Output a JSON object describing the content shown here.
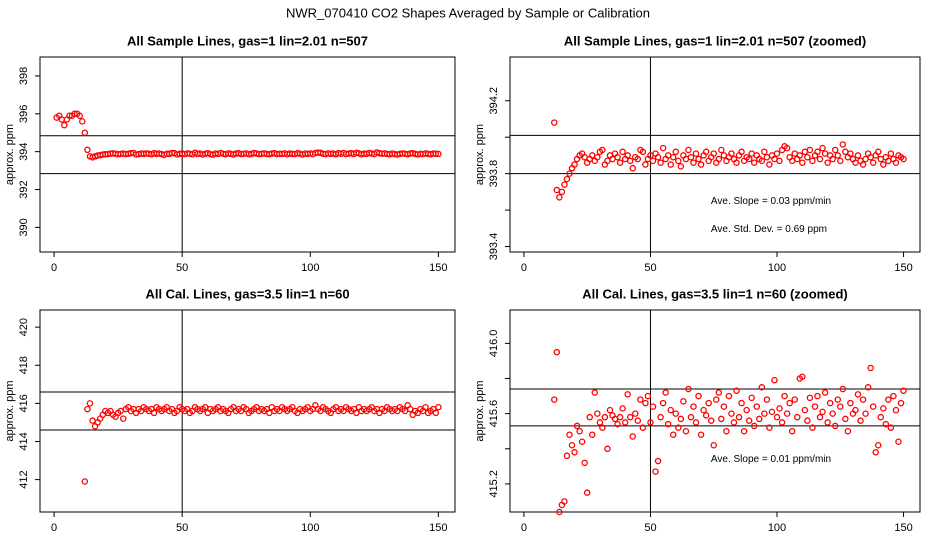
{
  "title": "NWR_070410  CO2 Shapes Averaged by Sample or Calibration",
  "chart_data": [
    {
      "type": "scatter",
      "title": "All Sample Lines, gas=1 lin=2.01 n=507",
      "y_label": "approx. ppm",
      "color": "#ff0000",
      "xlim": [
        -5.5,
        156.5
      ],
      "xticks": [
        0,
        50,
        100,
        150
      ],
      "ylim": [
        388.7,
        399.0
      ],
      "yticks": [
        390,
        392,
        394,
        396,
        398
      ],
      "hlines": [
        394.84,
        392.84
      ],
      "vline": 50,
      "x": [
        1,
        2,
        3,
        4,
        5,
        6,
        7,
        8,
        9,
        10,
        11,
        12,
        13,
        14,
        15,
        16,
        17,
        18,
        19,
        20,
        21,
        22,
        23,
        24,
        25,
        26,
        27,
        28,
        29,
        30,
        31,
        32,
        33,
        34,
        35,
        36,
        37,
        38,
        39,
        40,
        41,
        42,
        43,
        44,
        45,
        46,
        47,
        48,
        49,
        50,
        51,
        52,
        53,
        54,
        55,
        56,
        57,
        58,
        59,
        60,
        61,
        62,
        63,
        64,
        65,
        66,
        67,
        68,
        69,
        70,
        71,
        72,
        73,
        74,
        75,
        76,
        77,
        78,
        79,
        80,
        81,
        82,
        83,
        84,
        85,
        86,
        87,
        88,
        89,
        90,
        91,
        92,
        93,
        94,
        95,
        96,
        97,
        98,
        99,
        100,
        101,
        102,
        103,
        104,
        105,
        106,
        107,
        108,
        109,
        110,
        111,
        112,
        113,
        114,
        115,
        116,
        117,
        118,
        119,
        120,
        121,
        122,
        123,
        124,
        125,
        126,
        127,
        128,
        129,
        130,
        131,
        132,
        133,
        134,
        135,
        136,
        137,
        138,
        139,
        140,
        141,
        142,
        143,
        144,
        145,
        146,
        147,
        148,
        149,
        150
      ],
      "values": [
        395.8,
        395.9,
        395.7,
        395.4,
        395.7,
        395.9,
        395.9,
        396.0,
        396.0,
        395.9,
        395.6,
        395.0,
        394.1,
        393.75,
        393.7,
        393.75,
        393.8,
        393.82,
        393.85,
        393.86,
        393.87,
        393.9,
        393.91,
        393.89,
        393.86,
        393.88,
        393.9,
        393.87,
        393.89,
        393.92,
        393.93,
        393.85,
        393.87,
        393.9,
        393.88,
        393.91,
        393.89,
        393.86,
        393.92,
        393.88,
        393.9,
        393.87,
        393.83,
        393.89,
        393.88,
        393.93,
        393.92,
        393.85,
        393.88,
        393.9,
        393.87,
        393.91,
        393.89,
        393.86,
        393.94,
        393.88,
        393.9,
        393.85,
        393.89,
        393.92,
        393.87,
        393.84,
        393.9,
        393.88,
        393.93,
        393.89,
        393.86,
        393.91,
        393.88,
        393.85,
        393.9,
        393.92,
        393.87,
        393.89,
        393.91,
        393.86,
        393.88,
        393.93,
        393.9,
        393.87,
        393.89,
        393.91,
        393.88,
        393.86,
        393.9,
        393.92,
        393.87,
        393.89,
        393.88,
        393.91,
        393.86,
        393.9,
        393.88,
        393.87,
        393.92,
        393.89,
        393.85,
        393.9,
        393.88,
        393.91,
        393.87,
        393.93,
        393.95,
        393.94,
        393.89,
        393.87,
        393.91,
        393.88,
        393.9,
        393.86,
        393.92,
        393.89,
        393.93,
        393.87,
        393.9,
        393.92,
        393.88,
        393.94,
        393.91,
        393.86,
        393.9,
        393.88,
        393.93,
        393.9,
        393.87,
        393.96,
        393.92,
        393.89,
        393.91,
        393.88,
        393.86,
        393.9,
        393.87,
        393.85,
        393.88,
        393.91,
        393.89,
        393.86,
        393.9,
        393.92,
        393.88,
        393.85,
        393.89,
        393.87,
        393.91,
        393.88,
        393.86,
        393.9,
        393.89,
        393.88
      ]
    },
    {
      "type": "scatter",
      "title": "All Sample Lines, gas=1 lin=2.01 n=507 (zoomed)",
      "y_label": "approx. ppm",
      "color": "#ff0000",
      "xlim": [
        -5.5,
        156.5
      ],
      "xticks": [
        0,
        50,
        100,
        150
      ],
      "ylim": [
        393.37,
        394.44
      ],
      "yticks": [
        393.4,
        393.8,
        394.2
      ],
      "yminor": [
        393.6,
        394.0
      ],
      "hlines": [
        394.01,
        393.8
      ],
      "vline": 50,
      "annotations": [
        "Ave. Slope =  0.03  ppm/min",
        "Ave. Std. Dev. =  0.69  ppm"
      ],
      "x": [
        12,
        13,
        14,
        15,
        16,
        17,
        18,
        19,
        20,
        21,
        22,
        23,
        24,
        25,
        26,
        27,
        28,
        29,
        30,
        31,
        32,
        33,
        34,
        35,
        36,
        37,
        38,
        39,
        40,
        41,
        42,
        43,
        44,
        45,
        46,
        47,
        48,
        49,
        50,
        51,
        52,
        53,
        54,
        55,
        56,
        57,
        58,
        59,
        60,
        61,
        62,
        63,
        64,
        65,
        66,
        67,
        68,
        69,
        70,
        71,
        72,
        73,
        74,
        75,
        76,
        77,
        78,
        79,
        80,
        81,
        82,
        83,
        84,
        85,
        86,
        87,
        88,
        89,
        90,
        91,
        92,
        93,
        94,
        95,
        96,
        97,
        98,
        99,
        100,
        101,
        102,
        103,
        104,
        105,
        106,
        107,
        108,
        109,
        110,
        111,
        112,
        113,
        114,
        115,
        116,
        117,
        118,
        119,
        120,
        121,
        122,
        123,
        124,
        125,
        126,
        127,
        128,
        129,
        130,
        131,
        132,
        133,
        134,
        135,
        136,
        137,
        138,
        139,
        140,
        141,
        142,
        143,
        144,
        145,
        146,
        147,
        148,
        149,
        150
      ],
      "values": [
        394.08,
        393.71,
        393.67,
        393.7,
        393.74,
        393.77,
        393.8,
        393.83,
        393.85,
        393.88,
        393.9,
        393.91,
        393.89,
        393.86,
        393.88,
        393.9,
        393.87,
        393.89,
        393.92,
        393.93,
        393.85,
        393.87,
        393.9,
        393.88,
        393.91,
        393.89,
        393.86,
        393.92,
        393.88,
        393.9,
        393.87,
        393.83,
        393.89,
        393.88,
        393.93,
        393.92,
        393.85,
        393.88,
        393.9,
        393.87,
        393.91,
        393.89,
        393.86,
        393.94,
        393.88,
        393.9,
        393.85,
        393.89,
        393.92,
        393.87,
        393.84,
        393.9,
        393.88,
        393.93,
        393.89,
        393.86,
        393.91,
        393.88,
        393.85,
        393.9,
        393.92,
        393.87,
        393.89,
        393.91,
        393.86,
        393.88,
        393.93,
        393.9,
        393.87,
        393.89,
        393.91,
        393.88,
        393.86,
        393.9,
        393.92,
        393.87,
        393.89,
        393.88,
        393.91,
        393.86,
        393.9,
        393.88,
        393.87,
        393.92,
        393.89,
        393.85,
        393.9,
        393.88,
        393.91,
        393.87,
        393.93,
        393.95,
        393.94,
        393.89,
        393.87,
        393.91,
        393.88,
        393.9,
        393.86,
        393.92,
        393.89,
        393.93,
        393.87,
        393.9,
        393.92,
        393.88,
        393.94,
        393.91,
        393.86,
        393.9,
        393.88,
        393.93,
        393.9,
        393.87,
        393.96,
        393.92,
        393.89,
        393.91,
        393.88,
        393.86,
        393.9,
        393.87,
        393.85,
        393.88,
        393.91,
        393.89,
        393.86,
        393.9,
        393.92,
        393.88,
        393.85,
        393.89,
        393.87,
        393.91,
        393.88,
        393.86,
        393.9,
        393.89,
        393.88
      ]
    },
    {
      "type": "scatter",
      "title": "All Cal. Lines, gas=3.5 lin=1 n=60",
      "y_label": "approx. ppm",
      "color": "#ff0000",
      "xlim": [
        -5.5,
        156.5
      ],
      "xticks": [
        0,
        50,
        100,
        150
      ],
      "ylim": [
        410.3,
        420.9
      ],
      "yticks": [
        412,
        414,
        416,
        418,
        420
      ],
      "hlines": [
        416.6,
        414.6
      ],
      "vline": 50,
      "x": [
        12,
        13,
        14,
        15,
        16,
        17,
        18,
        19,
        20,
        21,
        22,
        23,
        24,
        25,
        26,
        27,
        28,
        29,
        30,
        31,
        32,
        33,
        34,
        35,
        36,
        37,
        38,
        39,
        40,
        41,
        42,
        43,
        44,
        45,
        46,
        47,
        48,
        49,
        50,
        51,
        52,
        53,
        54,
        55,
        56,
        57,
        58,
        59,
        60,
        61,
        62,
        63,
        64,
        65,
        66,
        67,
        68,
        69,
        70,
        71,
        72,
        73,
        74,
        75,
        76,
        77,
        78,
        79,
        80,
        81,
        82,
        83,
        84,
        85,
        86,
        87,
        88,
        89,
        90,
        91,
        92,
        93,
        94,
        95,
        96,
        97,
        98,
        99,
        100,
        101,
        102,
        103,
        104,
        105,
        106,
        107,
        108,
        109,
        110,
        111,
        112,
        113,
        114,
        115,
        116,
        117,
        118,
        119,
        120,
        121,
        122,
        123,
        124,
        125,
        126,
        127,
        128,
        129,
        130,
        131,
        132,
        133,
        134,
        135,
        136,
        137,
        138,
        139,
        140,
        141,
        142,
        143,
        144,
        145,
        146,
        147,
        148,
        149,
        150
      ],
      "values": [
        411.9,
        415.7,
        416.0,
        415.1,
        414.8,
        415.0,
        415.2,
        415.4,
        415.6,
        415.5,
        415.6,
        415.4,
        415.3,
        415.5,
        415.6,
        415.2,
        415.7,
        415.8,
        415.6,
        415.7,
        415.5,
        415.7,
        415.6,
        415.8,
        415.7,
        415.6,
        415.7,
        415.5,
        415.8,
        415.7,
        415.6,
        415.7,
        415.8,
        415.6,
        415.7,
        415.5,
        415.6,
        415.8,
        415.7,
        415.6,
        415.7,
        415.5,
        415.6,
        415.8,
        415.7,
        415.6,
        415.7,
        415.8,
        415.5,
        415.7,
        415.6,
        415.7,
        415.8,
        415.6,
        415.7,
        415.6,
        415.5,
        415.7,
        415.8,
        415.6,
        415.7,
        415.6,
        415.8,
        415.7,
        415.5,
        415.6,
        415.7,
        415.8,
        415.6,
        415.7,
        415.6,
        415.7,
        415.5,
        415.8,
        415.6,
        415.7,
        415.6,
        415.8,
        415.7,
        415.6,
        415.7,
        415.8,
        415.6,
        415.5,
        415.7,
        415.6,
        415.7,
        415.8,
        415.6,
        415.7,
        415.9,
        415.7,
        415.6,
        415.8,
        415.7,
        415.6,
        415.5,
        415.7,
        415.8,
        415.6,
        415.7,
        415.6,
        415.8,
        415.7,
        415.6,
        415.7,
        415.5,
        415.8,
        415.6,
        415.7,
        415.6,
        415.7,
        415.8,
        415.6,
        415.7,
        415.5,
        415.7,
        415.6,
        415.8,
        415.7,
        415.6,
        415.7,
        415.6,
        415.8,
        415.7,
        415.6,
        415.9,
        415.7,
        415.4,
        415.6,
        415.5,
        415.7,
        415.6,
        415.8,
        415.5,
        415.6,
        415.7,
        415.5,
        415.8
      ]
    },
    {
      "type": "scatter",
      "title": "All Cal. Lines, gas=3.5 lin=1 n=60 (zoomed)",
      "y_label": "approx. ppm",
      "color": "#ff0000",
      "xlim": [
        -5.5,
        156.5
      ],
      "xticks": [
        0,
        50,
        100,
        150
      ],
      "ylim": [
        415.04,
        416.19
      ],
      "yticks": [
        415.2,
        415.6,
        {
          "value": 416,
          "label": "416.0"
        }
      ],
      "yminor": [
        415.4,
        415.8
      ],
      "hlines": [
        415.74,
        415.53
      ],
      "vline": 50,
      "annotations": [
        "Ave. Slope =  0.01  ppm/min"
      ],
      "x": [
        12,
        13,
        14,
        15,
        16,
        17,
        18,
        19,
        20,
        21,
        22,
        23,
        24,
        25,
        26,
        27,
        28,
        29,
        30,
        31,
        32,
        33,
        34,
        35,
        36,
        37,
        38,
        39,
        40,
        41,
        42,
        43,
        44,
        45,
        46,
        47,
        48,
        49,
        50,
        51,
        52,
        53,
        54,
        55,
        56,
        57,
        58,
        59,
        60,
        61,
        62,
        63,
        64,
        65,
        66,
        67,
        68,
        69,
        70,
        71,
        72,
        73,
        74,
        75,
        76,
        77,
        78,
        79,
        80,
        81,
        82,
        83,
        84,
        85,
        86,
        87,
        88,
        89,
        90,
        91,
        92,
        93,
        94,
        95,
        96,
        97,
        98,
        99,
        100,
        101,
        102,
        103,
        104,
        105,
        106,
        107,
        108,
        109,
        110,
        111,
        112,
        113,
        114,
        115,
        116,
        117,
        118,
        119,
        120,
        121,
        122,
        123,
        124,
        125,
        126,
        127,
        128,
        129,
        130,
        131,
        132,
        133,
        134,
        135,
        136,
        137,
        138,
        139,
        140,
        141,
        142,
        143,
        144,
        145,
        146,
        147,
        148,
        149,
        150
      ],
      "values": [
        415.68,
        415.95,
        415.04,
        415.08,
        415.1,
        415.36,
        415.48,
        415.42,
        415.38,
        415.53,
        415.5,
        415.44,
        415.32,
        415.15,
        415.58,
        415.48,
        415.72,
        415.6,
        415.55,
        415.52,
        415.58,
        415.4,
        415.62,
        415.59,
        415.57,
        415.54,
        415.58,
        415.63,
        415.55,
        415.71,
        415.58,
        415.47,
        415.6,
        415.56,
        415.68,
        415.52,
        415.66,
        415.7,
        415.55,
        415.64,
        415.27,
        415.33,
        415.58,
        415.66,
        415.72,
        415.54,
        415.62,
        415.48,
        415.6,
        415.52,
        415.57,
        415.67,
        415.5,
        415.74,
        415.58,
        415.64,
        415.55,
        415.7,
        415.48,
        415.62,
        415.59,
        415.66,
        415.56,
        415.42,
        415.68,
        415.72,
        415.57,
        415.64,
        415.5,
        415.7,
        415.6,
        415.55,
        415.73,
        415.58,
        415.66,
        415.5,
        415.62,
        415.56,
        415.69,
        415.53,
        415.64,
        415.57,
        415.75,
        415.6,
        415.68,
        415.52,
        415.61,
        415.79,
        415.58,
        415.63,
        415.55,
        415.7,
        415.6,
        415.66,
        415.5,
        415.68,
        415.58,
        415.8,
        415.81,
        415.62,
        415.56,
        415.69,
        415.52,
        415.64,
        415.7,
        415.58,
        415.61,
        415.72,
        415.55,
        415.66,
        415.6,
        415.53,
        415.68,
        415.64,
        415.74,
        415.57,
        415.5,
        415.66,
        415.6,
        415.62,
        415.71,
        415.56,
        415.68,
        415.6,
        415.75,
        415.86,
        415.64,
        415.38,
        415.42,
        415.58,
        415.63,
        415.54,
        415.68,
        415.52,
        415.7,
        415.62,
        415.44,
        415.66,
        415.73
      ]
    }
  ]
}
